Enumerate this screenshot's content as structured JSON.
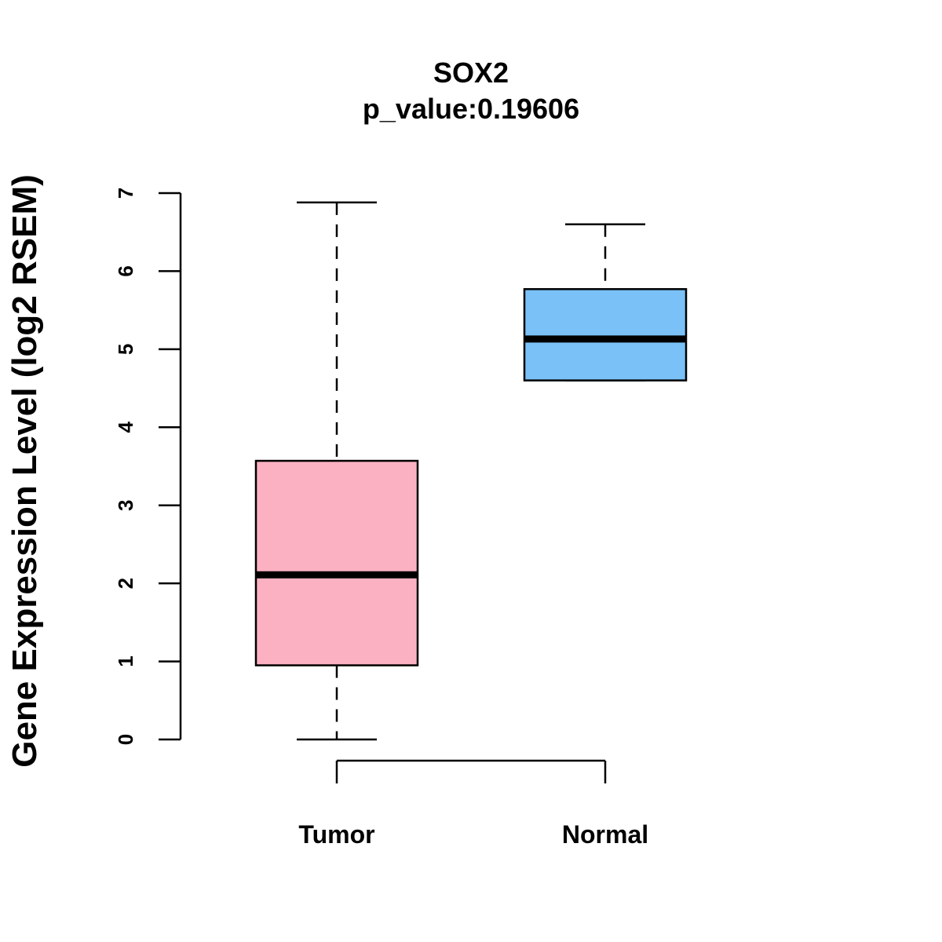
{
  "chart_data": {
    "type": "box",
    "title": "SOX2",
    "subtitle": "p_value:0.19606",
    "ylabel": "Gene Expression Level (log2 RSEM)",
    "xlabel": "",
    "ylim": [
      0,
      7
    ],
    "yticks": [
      "0",
      "1",
      "2",
      "3",
      "4",
      "5",
      "6",
      "7"
    ],
    "categories": [
      "Tumor",
      "Normal"
    ],
    "boxes": [
      {
        "name": "Tumor",
        "whisker_low": 0,
        "q1": 0.95,
        "median": 2.11,
        "q3": 3.57,
        "whisker_high": 6.88,
        "color": "#fbb1c2"
      },
      {
        "name": "Normal",
        "whisker_low": 4.6,
        "q1": 4.6,
        "median": 5.13,
        "q3": 5.77,
        "whisker_high": 6.6,
        "color": "#79c1f7"
      }
    ]
  }
}
